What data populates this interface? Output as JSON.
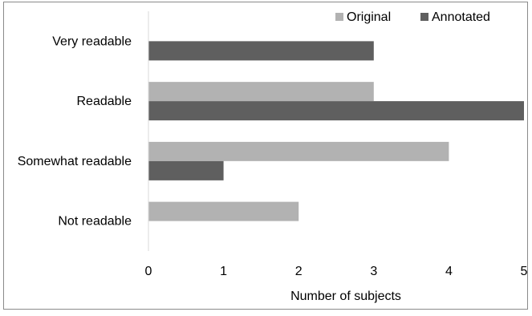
{
  "chart_data": {
    "type": "bar",
    "orientation": "horizontal",
    "title": "",
    "xlabel": "Number of subjects",
    "ylabel": "",
    "xlim": [
      0,
      5
    ],
    "xticks": [
      0,
      1,
      2,
      3,
      4,
      5
    ],
    "grid": false,
    "legend_position": "top-right",
    "categories": [
      "Very readable",
      "Readable",
      "Somewhat readable",
      "Not readable"
    ],
    "series": [
      {
        "name": "Original",
        "color": "#b2b2b2",
        "values": [
          0,
          3,
          4,
          2
        ]
      },
      {
        "name": "Annotated",
        "color": "#5f5f5f",
        "values": [
          3,
          5,
          1,
          0
        ]
      }
    ]
  }
}
